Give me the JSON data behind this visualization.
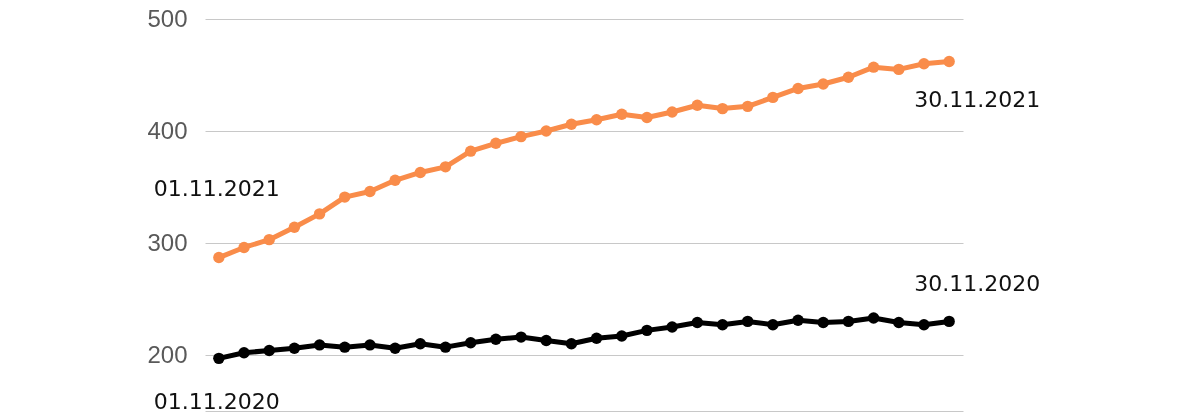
{
  "chart_data": {
    "type": "line",
    "categories": [
      null,
      null,
      null,
      null,
      null,
      null,
      null,
      null,
      null,
      null,
      null,
      null,
      null,
      null,
      null,
      null,
      null,
      null,
      null,
      null,
      null,
      null,
      null,
      null,
      null,
      null,
      null,
      null,
      null,
      null
    ],
    "series": [
      {
        "color": "#000000",
        "values": [
          197,
          202,
          204,
          206,
          209,
          207,
          209,
          206,
          210,
          207,
          211,
          214,
          216,
          213,
          210,
          215,
          217,
          222,
          225,
          229,
          227,
          230,
          227,
          231,
          229,
          230,
          233,
          229,
          227,
          230
        ]
      },
      {
        "color": "#f98c4a",
        "values": [
          287,
          296,
          303,
          314,
          326,
          341,
          346,
          356,
          363,
          368,
          382,
          389,
          395,
          400,
          406,
          410,
          415,
          412,
          417,
          423,
          420,
          422,
          430,
          438,
          442,
          448,
          457,
          455,
          460,
          462
        ]
      }
    ],
    "ylim": [
      150,
      500
    ],
    "yticks": [
      200,
      300,
      400,
      500
    ],
    "grid": "y",
    "marker": "circle",
    "tick_labels": "y",
    "annotations": [
      "01.11.2020",
      "30.11.2020",
      "01.11.2021",
      "30.11.2021"
    ]
  }
}
